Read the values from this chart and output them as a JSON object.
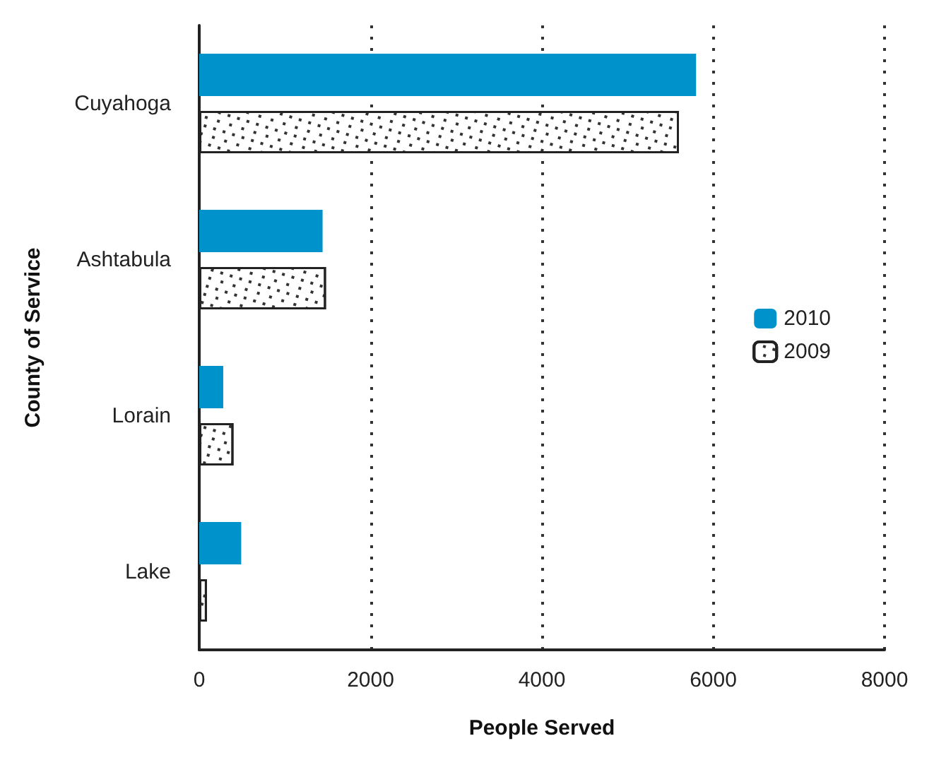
{
  "chart_data": {
    "type": "bar",
    "orientation": "horizontal",
    "xlabel": "People Served",
    "ylabel": "County of Service",
    "categories": [
      "Cuyahoga",
      "Ashtabula",
      "Lorain",
      "Lake"
    ],
    "series": [
      {
        "name": "2010",
        "color": "#0093cb",
        "values": [
          5800,
          1440,
          280,
          490
        ]
      },
      {
        "name": "2009",
        "color": "#ffffff",
        "values": [
          5600,
          1480,
          400,
          90
        ]
      }
    ],
    "xlim": [
      0,
      8000
    ],
    "xticks": [
      0,
      2000,
      4000,
      6000,
      8000
    ],
    "grid": "x",
    "legend": "right"
  }
}
